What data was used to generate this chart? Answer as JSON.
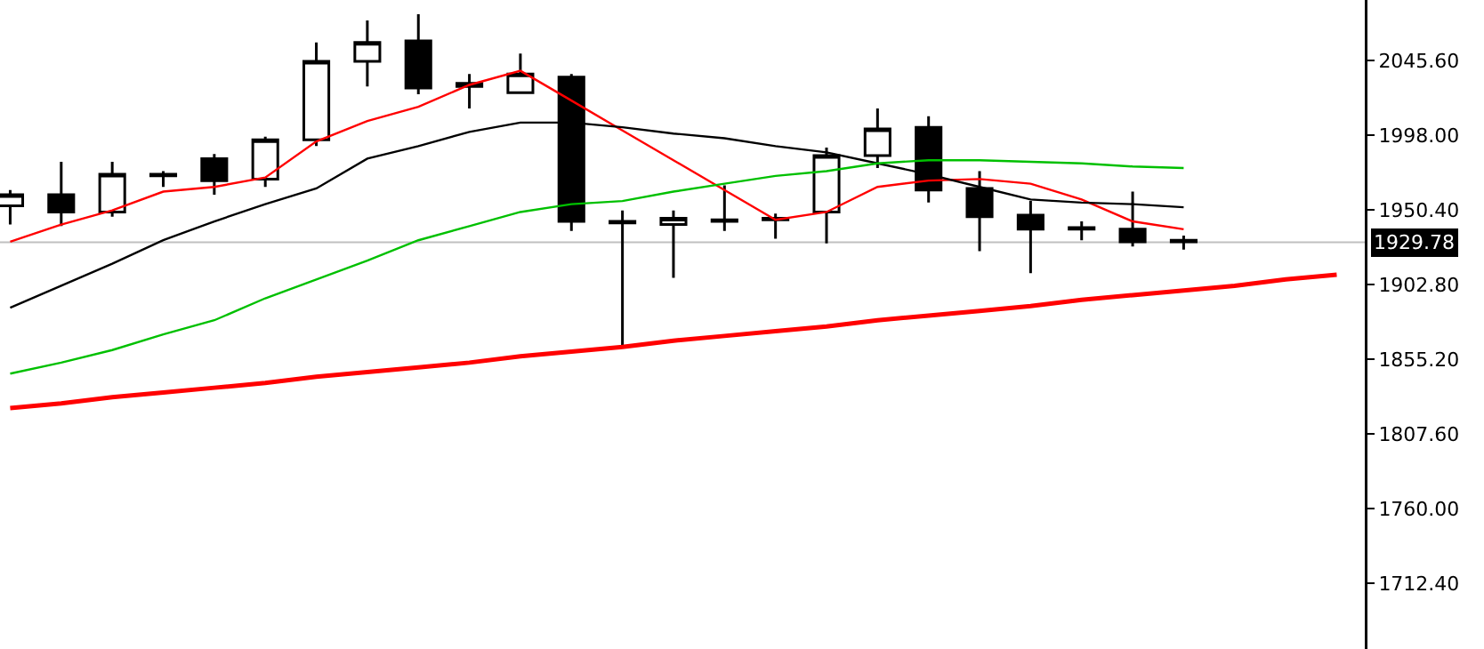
{
  "chart_data": {
    "type": "candlestick",
    "categories": [
      null,
      null,
      null,
      null,
      null,
      null,
      null,
      null,
      null,
      null,
      null,
      null,
      null,
      null,
      null,
      null,
      null,
      null,
      null,
      null,
      null,
      null,
      null,
      null,
      null,
      null,
      null
    ],
    "ohlc": [
      [
        1953,
        1963,
        1941,
        1960
      ],
      [
        1960,
        1981,
        1940,
        1949
      ],
      [
        1949,
        1981,
        1946,
        1973
      ],
      [
        1972,
        1975,
        1965,
        1973
      ],
      [
        1983,
        1986,
        1960,
        1969
      ],
      [
        1970,
        1997,
        1965,
        1995
      ],
      [
        1995,
        2057,
        1991,
        2045
      ],
      [
        2045,
        2071,
        2029,
        2057
      ],
      [
        2058,
        2075,
        2024,
        2028
      ],
      [
        2029,
        2037,
        2015,
        2031
      ],
      [
        2025,
        2050,
        2025,
        2037
      ],
      [
        2035,
        2037,
        1937,
        1943
      ],
      [
        1942,
        1950,
        1864,
        1943
      ],
      [
        1941,
        1950,
        1907,
        1945
      ],
      [
        1943,
        1966,
        1937,
        1944
      ],
      [
        1944,
        1948,
        1932,
        1945
      ],
      [
        1949,
        1990,
        1929,
        1985
      ],
      [
        1985,
        2015,
        1977,
        2002
      ],
      [
        2003,
        2010,
        1955,
        1963
      ],
      [
        1964,
        1975,
        1924,
        1946
      ],
      [
        1947,
        1956,
        1910,
        1938
      ],
      [
        1938,
        1943,
        1931,
        1939
      ],
      [
        1938,
        1962,
        1927,
        1930
      ],
      [
        1931,
        1934,
        1925,
        1930
      ],
      null,
      null,
      null
    ],
    "series": [
      {
        "type": "line",
        "color": "#ff0000",
        "values": [
          1930,
          1941,
          1950,
          1962,
          1965,
          1971,
          1994,
          2007,
          2016,
          2030,
          2039,
          2020,
          2001,
          1982,
          1963,
          1944,
          1949,
          1965,
          1969,
          1970,
          1967,
          1957,
          1943,
          1938,
          null,
          null,
          null
        ]
      },
      {
        "type": "line",
        "color": "#000000",
        "values": [
          1888,
          1902,
          1916,
          1931,
          1943,
          1954,
          1964,
          1983,
          1991,
          2000,
          2006,
          2006,
          2003,
          1999,
          1996,
          1991,
          1987,
          1980,
          1973,
          1965,
          1957,
          1955,
          1954,
          1952,
          null,
          null,
          null
        ]
      },
      {
        "type": "line",
        "color": "#00c000",
        "values": [
          1846,
          1853,
          1861,
          1871,
          1880,
          1894,
          1906,
          1918,
          1931,
          1940,
          1949,
          1954,
          1956,
          1962,
          1967,
          1972,
          1975,
          1980,
          1982,
          1982,
          1981,
          1980,
          1978,
          1977,
          null,
          null,
          null
        ]
      },
      {
        "type": "line",
        "color": "#ff0000",
        "values": [
          1824,
          1827,
          1831,
          1834,
          1837,
          1840,
          1844,
          1847,
          1850,
          1853,
          1857,
          1860,
          1863,
          1867,
          1870,
          1873,
          1876,
          1880,
          1883,
          1886,
          1889,
          1893,
          1896,
          1899,
          1902,
          1906,
          1909
        ]
      }
    ],
    "ref_lines": [
      {
        "axis": "y",
        "value": 1929.78,
        "label": "1929.78",
        "color": "#c0c0c0"
      }
    ],
    "ylim": [
      1670.5,
      2084.1
    ],
    "yticks": [
      {
        "value": 1712.4,
        "label": "1712.40"
      },
      {
        "value": 1760,
        "label": "1760.00"
      },
      {
        "value": 1807.6,
        "label": "1807.60"
      },
      {
        "value": 1855.2,
        "label": "1855.20"
      },
      {
        "value": 1902.8,
        "label": "1902.80"
      },
      {
        "value": 1950.4,
        "label": "1950.40"
      },
      {
        "value": 1998,
        "label": "1998.00"
      },
      {
        "value": 2045.6,
        "label": "2045.60"
      }
    ],
    "tick_labels": "y",
    "grid": false
  }
}
